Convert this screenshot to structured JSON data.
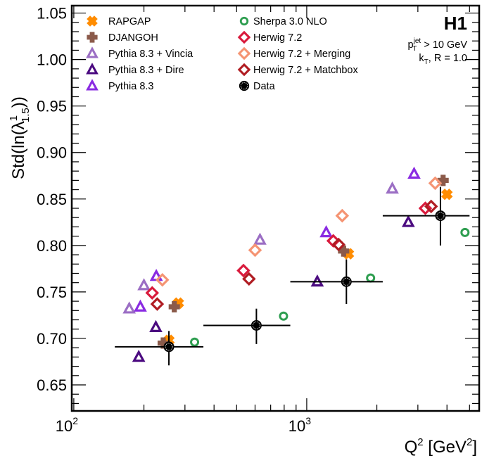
{
  "chart_data": {
    "type": "scatter",
    "title": "",
    "experiment_label": "H1",
    "annotations": [
      {
        "text_main": "p",
        "sub": "T",
        "sup": "jet",
        "rest": " > 10 GeV"
      },
      {
        "text_main": "k",
        "sub": "T",
        "rest": ", R = 1.0"
      }
    ],
    "xlabel": {
      "base": "Q",
      "sup1": "2",
      "mid": " [GeV",
      "sup2": "2",
      "end": "]"
    },
    "ylabel": {
      "pre": "Std(ln(λ",
      "sup": "1",
      "sub": "1.5",
      "post": "))"
    },
    "xscale": "log",
    "xlim": [
      98,
      5500
    ],
    "ylim": [
      0.622,
      1.058
    ],
    "x_ticks": [
      {
        "value": 100,
        "base": "10",
        "exp": "2"
      },
      {
        "value": 1000,
        "base": "10",
        "exp": "3"
      }
    ],
    "y_ticks": [
      {
        "value": 0.65,
        "label": "0.65"
      },
      {
        "value": 0.7,
        "label": "0.70"
      },
      {
        "value": 0.75,
        "label": "0.75"
      },
      {
        "value": 0.8,
        "label": "0.80"
      },
      {
        "value": 0.85,
        "label": "0.85"
      },
      {
        "value": 0.9,
        "label": "0.90"
      },
      {
        "value": 0.95,
        "label": "0.95"
      },
      {
        "value": 1.0,
        "label": "1.00"
      },
      {
        "value": 1.05,
        "label": "1.05"
      }
    ],
    "legend_placement": "top-left",
    "series": [
      {
        "name": "RAPGAP",
        "marker": "cross-x",
        "color": "#ff8c00",
        "x": [
          256,
          281,
          1510,
          4000
        ],
        "y": [
          0.698,
          0.738,
          0.791,
          0.855
        ]
      },
      {
        "name": "DJANGOH",
        "marker": "plus",
        "color": "#8b5a4a",
        "x": [
          242,
          270,
          1440,
          3850
        ],
        "y": [
          0.695,
          0.734,
          0.794,
          0.87
        ]
      },
      {
        "name": "Pythia 8.3 + Vincia",
        "marker": "triangle-open",
        "color": "#9b6ec4",
        "x": [
          173,
          200,
          630,
          2330
        ],
        "y": [
          0.732,
          0.757,
          0.806,
          0.861
        ]
      },
      {
        "name": "Pythia 8.3 + Dire",
        "marker": "triangle-open",
        "color": "#4b0a80",
        "x": [
          190,
          225,
          1110,
          2730
        ],
        "y": [
          0.68,
          0.712,
          0.761,
          0.825
        ]
      },
      {
        "name": "Pythia 8.3",
        "marker": "triangle-open",
        "color": "#8a2be2",
        "x": [
          193,
          226,
          1212,
          2890
        ],
        "y": [
          0.734,
          0.767,
          0.814,
          0.877
        ]
      },
      {
        "name": "Sherpa 3.0 NLO",
        "marker": "circle-open",
        "color": "#2e9e50",
        "x": [
          330,
          795,
          1880,
          4780
        ],
        "y": [
          0.696,
          0.724,
          0.765,
          0.814
        ]
      },
      {
        "name": "Herwig 7.2",
        "marker": "diamond-open",
        "color": "#d91a3c",
        "x": [
          217,
          535,
          1300,
          3230
        ],
        "y": [
          0.749,
          0.773,
          0.805,
          0.84
        ]
      },
      {
        "name": "Herwig 7.2 + Merging",
        "marker": "diamond-open",
        "color": "#f59473",
        "x": [
          240,
          600,
          1420,
          3560
        ],
        "y": [
          0.763,
          0.795,
          0.832,
          0.867
        ]
      },
      {
        "name": "Herwig 7.2 + Matchbox",
        "marker": "diamond-open",
        "color": "#b01c22",
        "x": [
          228,
          565,
          1370,
          3420
        ],
        "y": [
          0.737,
          0.764,
          0.801,
          0.842
        ]
      }
    ],
    "data": {
      "name": "Data",
      "marker": "circle-filled",
      "color": "#000000",
      "x": [
        256,
        608,
        1480,
        3750
      ],
      "y": [
        0.691,
        0.714,
        0.761,
        0.832
      ],
      "x_low": [
        150,
        360,
        850,
        2120
      ],
      "x_high": [
        360,
        850,
        2120,
        5000
      ],
      "y_err_low": [
        0.02,
        0.02,
        0.024,
        0.032
      ],
      "y_err_high": [
        0.017,
        0.018,
        0.024,
        0.031
      ]
    }
  }
}
